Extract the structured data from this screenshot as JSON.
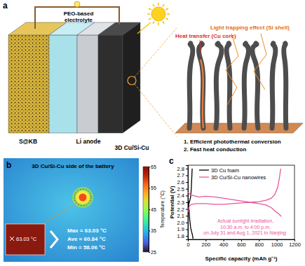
{
  "panel_a": {
    "label": "a",
    "electrolyte": [
      "PEO-based",
      "electrolyte"
    ],
    "cathode": "S@KB",
    "anode": "Li anode",
    "collector": "3D Cu/Si-Cu",
    "heat_transfer": "Heat transfer (Cu core)",
    "light_trapping": "Light trapping effect (Si shell)",
    "features": [
      "1. Efficient photothermal conversion",
      "2. Fast heat conduction"
    ]
  },
  "panel_b": {
    "label": "b",
    "title": "3D Cu/Si-Cu side of the battery",
    "spot_label": "63.03 °C",
    "stats": [
      "Max = 63.03 °C",
      "Ave = 60.84 °C",
      "Min = 58.06 °C"
    ],
    "colorbar": {
      "title": "Temperature (°C)",
      "range": [
        25,
        65
      ],
      "ticks": [
        25,
        35,
        45,
        55,
        65
      ]
    }
  },
  "chart_data": {
    "type": "line",
    "label": "c",
    "xlabel": "Specific capacity (mAh g⁻¹)",
    "ylabel": "Potential (V)",
    "xlim": [
      0,
      1200
    ],
    "xticks": [
      0,
      200,
      400,
      600,
      800,
      1000,
      1200
    ],
    "ylim": [
      1.75,
      2.85
    ],
    "yticks": [
      1.8,
      1.9,
      {
        "value": 2,
        "label": "2.0"
      },
      2.1,
      2.2,
      2.3,
      2.4,
      2.5,
      2.6,
      2.7,
      2.8
    ],
    "legend": "upper left",
    "annotation": {
      "lines": [
        "Actual sunlight irradiation,",
        "10:30 a.m. to 4:00 p.m.",
        "on July 31 and Aug 1, 2021 in"
      ],
      "place": "Nanjing"
    },
    "series": [
      {
        "name": "3D Cu foam",
        "color": "#000000",
        "x": [
          0,
          5,
          12,
          20,
          30,
          40,
          50,
          58,
          null,
          0,
          10,
          20,
          30,
          38,
          44,
          48
        ],
        "values": [
          2.38,
          2.32,
          2.2,
          2.05,
          1.93,
          1.87,
          1.82,
          1.76,
          null,
          2.2,
          2.27,
          2.32,
          2.38,
          2.5,
          2.68,
          2.8
        ]
      },
      {
        "name": "3D Cu/Si-Cu nanowires",
        "color": "#e8579c",
        "x": [
          0,
          20,
          60,
          120,
          200,
          300,
          400,
          500,
          600,
          700,
          800,
          880,
          940,
          990,
          1030,
          1050,
          null,
          0,
          15,
          40,
          100,
          200,
          300,
          400,
          500,
          600,
          700,
          800,
          880,
          940,
          980,
          1010,
          1030,
          1045
        ],
        "values": [
          2.45,
          2.42,
          2.4,
          2.38,
          2.39,
          2.38,
          2.36,
          2.34,
          2.32,
          2.3,
          2.28,
          2.26,
          2.22,
          2.16,
          2.12,
          2.09,
          null,
          2.15,
          2.24,
          2.27,
          2.28,
          2.28,
          2.27,
          2.27,
          2.28,
          2.29,
          2.3,
          2.31,
          2.33,
          2.36,
          2.42,
          2.52,
          2.66,
          2.8
        ]
      }
    ]
  }
}
